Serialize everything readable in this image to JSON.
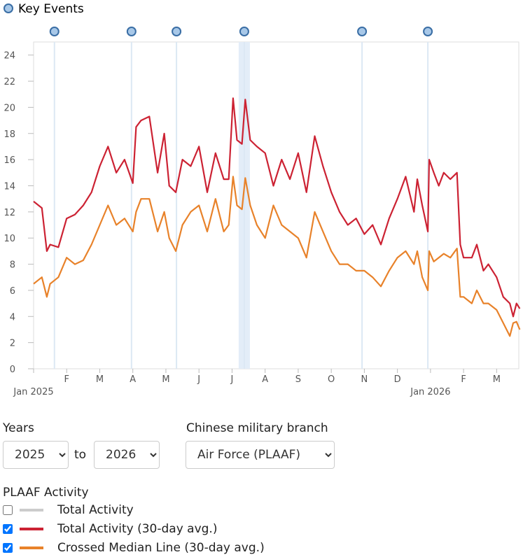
{
  "chart_data": {
    "type": "line",
    "key_events": {
      "label": "Key Events",
      "x": [
        0.63,
        2.96,
        4.32,
        6.37,
        9.93,
        11.92
      ],
      "band": [
        6.2,
        6.54
      ]
    },
    "x": [
      0,
      0.25,
      0.4,
      0.5,
      0.75,
      1,
      1.25,
      1.5,
      1.75,
      2,
      2.25,
      2.5,
      2.75,
      3,
      3.1,
      3.25,
      3.5,
      3.75,
      3.95,
      4.1,
      4.3,
      4.5,
      4.75,
      5,
      5.25,
      5.5,
      5.75,
      5.9,
      6.03,
      6.15,
      6.3,
      6.4,
      6.55,
      6.75,
      7,
      7.25,
      7.5,
      7.75,
      8,
      8.25,
      8.5,
      8.75,
      9,
      9.25,
      9.5,
      9.75,
      10,
      10.25,
      10.5,
      10.75,
      11,
      11.25,
      11.5,
      11.6,
      11.75,
      11.92,
      11.96,
      12.1,
      12.25,
      12.4,
      12.6,
      12.8,
      12.9,
      13,
      13.25,
      13.4,
      13.6,
      13.75,
      14,
      14.2,
      14.4,
      14.5,
      14.6,
      14.7
    ],
    "series": [
      {
        "name": "Total Activity (30-day avg.)",
        "color": "#cc2233",
        "visible": true,
        "values": [
          12.8,
          12.3,
          9.0,
          9.5,
          9.3,
          11.5,
          11.8,
          12.5,
          13.5,
          15.5,
          17.0,
          15.0,
          16.0,
          14.2,
          18.5,
          19.0,
          19.3,
          15.0,
          18.0,
          14.0,
          13.5,
          16.0,
          15.5,
          17.0,
          13.5,
          16.5,
          14.5,
          14.5,
          20.7,
          17.5,
          17.2,
          20.6,
          17.5,
          17.0,
          16.5,
          14.0,
          16.0,
          14.5,
          16.5,
          13.5,
          17.8,
          15.5,
          13.5,
          12.0,
          11.0,
          11.5,
          10.3,
          11.0,
          9.5,
          11.5,
          13.0,
          14.7,
          12.0,
          14.5,
          12.5,
          10.5,
          16.0,
          15.0,
          14.0,
          15.0,
          14.5,
          15.0,
          9.5,
          8.5,
          8.5,
          9.5,
          7.5,
          8.0,
          7.0,
          5.5,
          5.0,
          4.0,
          5.0,
          4.6
        ]
      },
      {
        "name": "Crossed Median Line (30-day avg.)",
        "color": "#e8822a",
        "visible": true,
        "values": [
          6.5,
          7.0,
          5.5,
          6.5,
          7.0,
          8.5,
          8.0,
          8.3,
          9.5,
          11.0,
          12.5,
          11.0,
          11.5,
          10.5,
          12.0,
          13.0,
          13.0,
          10.5,
          12.0,
          10.0,
          9.0,
          11.0,
          12.0,
          12.5,
          10.5,
          13.0,
          10.5,
          11.0,
          14.7,
          12.5,
          12.2,
          14.6,
          12.5,
          11.0,
          10.0,
          12.5,
          11.0,
          10.5,
          10.0,
          8.5,
          12.0,
          10.5,
          9.0,
          8.0,
          8.0,
          7.5,
          7.5,
          7.0,
          6.3,
          7.5,
          8.5,
          9.0,
          8.0,
          9.0,
          7.0,
          6.0,
          9.0,
          8.2,
          8.5,
          8.8,
          8.5,
          9.2,
          5.5,
          5.5,
          5.0,
          6.0,
          5.0,
          5.0,
          4.5,
          3.5,
          2.5,
          3.5,
          3.6,
          3.0
        ]
      }
    ],
    "xlim": [
      0,
      14.67
    ],
    "xticks": [
      {
        "value": 0,
        "label": "Jan 2025"
      },
      {
        "value": 1,
        "label": "F"
      },
      {
        "value": 2,
        "label": "M"
      },
      {
        "value": 3,
        "label": "A"
      },
      {
        "value": 4,
        "label": "M"
      },
      {
        "value": 5,
        "label": "J"
      },
      {
        "value": 6,
        "label": "J"
      },
      {
        "value": 7,
        "label": "A"
      },
      {
        "value": 8,
        "label": "S"
      },
      {
        "value": 9,
        "label": "O"
      },
      {
        "value": 10,
        "label": "N"
      },
      {
        "value": 11,
        "label": "D"
      },
      {
        "value": 12,
        "label": "Jan 2026"
      },
      {
        "value": 13,
        "label": "F"
      },
      {
        "value": 14,
        "label": "M"
      }
    ],
    "ylim": [
      0,
      25
    ],
    "yticks": [
      0,
      2,
      4,
      6,
      8,
      10,
      12,
      14,
      16,
      18,
      20,
      22,
      24
    ]
  },
  "controls": {
    "years_label": "Years",
    "year_from": "2025",
    "to": "to",
    "year_to": "2026",
    "branch_label": "Chinese military branch",
    "branch": "Air Force (PLAAF)",
    "panel_title": "PLAAF Activity",
    "hidden_series": {
      "label": "Total Activity",
      "color": "#cccccc",
      "checked": false
    }
  }
}
